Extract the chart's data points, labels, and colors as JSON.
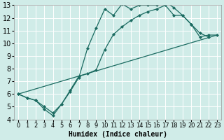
{
  "title": "",
  "xlabel": "Humidex (Indice chaleur)",
  "background_color": "#d0ece8",
  "grid_color": "#ffffff",
  "line_color": "#1a6a60",
  "xlim": [
    -0.5,
    23.5
  ],
  "ylim": [
    4,
    13
  ],
  "xticks": [
    0,
    1,
    2,
    3,
    4,
    5,
    6,
    7,
    8,
    9,
    10,
    11,
    12,
    13,
    14,
    15,
    16,
    17,
    18,
    19,
    20,
    21,
    22,
    23
  ],
  "yticks": [
    4,
    5,
    6,
    7,
    8,
    9,
    10,
    11,
    12,
    13
  ],
  "line1_x": [
    0,
    1,
    2,
    3,
    4,
    5,
    6,
    7,
    8,
    9,
    10,
    11,
    12,
    13,
    14,
    15,
    16,
    17,
    18,
    19,
    20,
    21,
    22
  ],
  "line1_y": [
    6.0,
    5.7,
    5.5,
    5.0,
    4.5,
    5.2,
    6.2,
    7.3,
    9.6,
    11.2,
    12.7,
    12.2,
    13.1,
    12.7,
    13.0,
    13.0,
    13.0,
    13.3,
    12.8,
    12.2,
    11.5,
    10.8,
    10.5
  ],
  "line2_x": [
    0,
    1,
    2,
    3,
    4,
    5,
    6,
    7,
    8,
    9,
    10,
    11,
    12,
    13,
    14,
    15,
    16,
    17,
    18,
    19,
    20,
    21,
    22,
    23
  ],
  "line2_y": [
    6.0,
    5.7,
    5.5,
    4.8,
    4.3,
    5.2,
    6.3,
    7.4,
    7.6,
    7.9,
    9.5,
    10.7,
    11.3,
    11.8,
    12.2,
    12.5,
    12.7,
    13.0,
    12.2,
    12.2,
    11.5,
    10.5,
    10.65,
    10.65
  ],
  "line3_x": [
    0,
    23
  ],
  "line3_y": [
    6.0,
    10.65
  ],
  "marker_size": 2.5,
  "line_width": 0.9,
  "font_size_label": 7,
  "font_size_tick": 6
}
